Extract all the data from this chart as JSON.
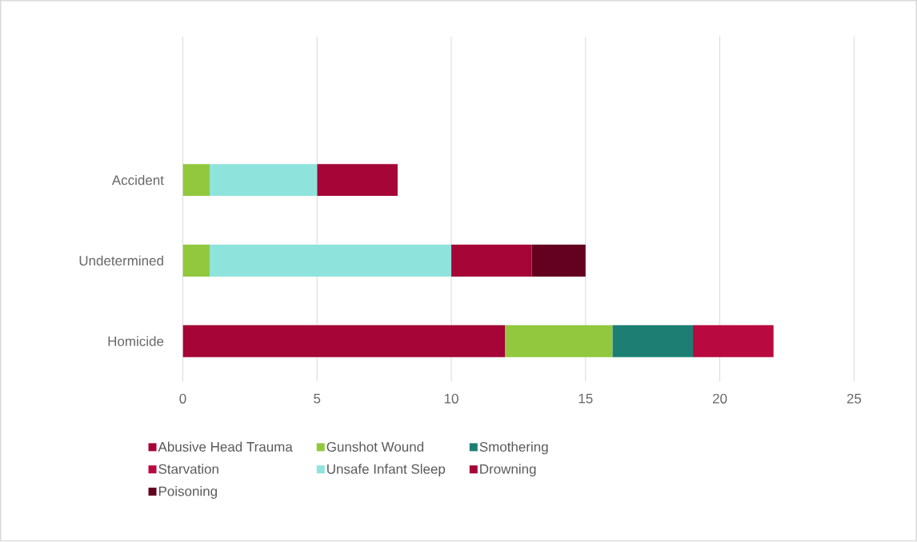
{
  "chart_data": {
    "type": "bar",
    "orientation": "horizontal",
    "stacked": true,
    "categories": [
      "Accident",
      "Undetermined",
      "Homicide"
    ],
    "series": [
      {
        "name": "Abusive Head Trauma",
        "color": "#a50537",
        "values": [
          0,
          0,
          12
        ]
      },
      {
        "name": "Gunshot Wound",
        "color": "#92c83e",
        "values": [
          1,
          1,
          4
        ]
      },
      {
        "name": "Smothering",
        "color": "#1d7f74",
        "values": [
          0,
          0,
          3
        ]
      },
      {
        "name": "Starvation",
        "color": "#b80a40",
        "values": [
          0,
          0,
          3
        ]
      },
      {
        "name": "Unsafe Infant Sleep",
        "color": "#8ee4dc",
        "values": [
          4,
          9,
          0
        ]
      },
      {
        "name": "Drowning",
        "color": "#a50537",
        "values": [
          3,
          3,
          0
        ]
      },
      {
        "name": "Poisoning",
        "color": "#640020",
        "values": [
          0,
          2,
          0
        ]
      }
    ],
    "xlim": [
      0,
      25
    ],
    "xticks": [
      0,
      5,
      10,
      15,
      20,
      25
    ],
    "grid": "x",
    "legend": "bottom"
  }
}
